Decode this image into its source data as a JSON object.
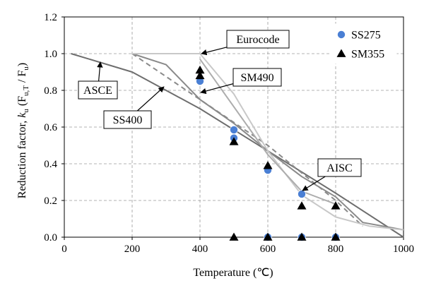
{
  "chart_data": {
    "type": "line",
    "xlabel": "Temperature (℃)",
    "ylabel_main": "Reduction factor, ",
    "ylabel_k": "k",
    "ylabel_k_sub": "u",
    "ylabel_ratio_open": " (F",
    "ylabel_ratio_sub1": "u,T",
    "ylabel_ratio_mid": " / F",
    "ylabel_ratio_sub2": "u",
    "ylabel_ratio_close": ")",
    "xlim": [
      0,
      1000
    ],
    "ylim": [
      0,
      1.2
    ],
    "xticks": [
      0,
      200,
      400,
      600,
      800,
      1000
    ],
    "yticks": [
      0.0,
      0.2,
      0.4,
      0.6,
      0.8,
      1.0,
      1.2
    ],
    "ytick_labels": [
      "0.0",
      "0.2",
      "0.4",
      "0.6",
      "0.8",
      "1.0",
      "1.2"
    ],
    "grid": true,
    "legend_position": "top-right",
    "curves": [
      {
        "label": "ASCE",
        "color": "#6e6e6e",
        "dash": "solid",
        "points": [
          [
            20,
            1.0
          ],
          [
            200,
            0.9
          ],
          [
            400,
            0.7
          ],
          [
            600,
            0.47
          ],
          [
            800,
            0.24
          ],
          [
            1000,
            0.0
          ]
        ]
      },
      {
        "label": "SS400",
        "color": "#8a8a8a",
        "dash": "solid",
        "points": [
          [
            200,
            1.0
          ],
          [
            300,
            0.94
          ],
          [
            400,
            0.75
          ],
          [
            500,
            0.62
          ],
          [
            600,
            0.47
          ],
          [
            700,
            0.33
          ],
          [
            800,
            0.22
          ],
          [
            880,
            0.08
          ],
          [
            1000,
            0.04
          ]
        ]
      },
      {
        "label": "SM490",
        "color": "#8a8a8a",
        "dash": "dashed",
        "points": [
          [
            200,
            1.0
          ],
          [
            400,
            0.75
          ],
          [
            600,
            0.5
          ],
          [
            800,
            0.2
          ],
          [
            880,
            0.06
          ]
        ]
      },
      {
        "label": "Eurocode",
        "color": "#c8c8c8",
        "dash": "solid",
        "points": [
          [
            200,
            1.0
          ],
          [
            400,
            1.0
          ],
          [
            500,
            0.78
          ],
          [
            600,
            0.47
          ],
          [
            700,
            0.23
          ],
          [
            800,
            0.11
          ],
          [
            900,
            0.06
          ],
          [
            1000,
            0.04
          ]
        ]
      },
      {
        "label": "AISC",
        "color": "#adadad",
        "dash": "solid",
        "points": [
          [
            400,
            0.97
          ],
          [
            600,
            0.45
          ],
          [
            700,
            0.25
          ],
          [
            800,
            0.18
          ]
        ]
      }
    ],
    "series": [
      {
        "name": "SS275",
        "marker": "circle",
        "color": "#4a7fd4",
        "points": [
          [
            400,
            0.85
          ],
          [
            500,
            0.585
          ],
          [
            500,
            0.54
          ],
          [
            600,
            0.365
          ],
          [
            700,
            0.235
          ],
          [
            600,
            0.0
          ],
          [
            700,
            0.0
          ],
          [
            800,
            0.0
          ]
        ]
      },
      {
        "name": "SM355",
        "marker": "triangle",
        "color": "#000000",
        "points": [
          [
            400,
            0.91
          ],
          [
            400,
            0.88
          ],
          [
            500,
            0.52
          ],
          [
            600,
            0.39
          ],
          [
            700,
            0.17
          ],
          [
            800,
            0.17
          ],
          [
            500,
            0.0
          ],
          [
            600,
            0.0
          ],
          [
            700,
            0.0
          ],
          [
            800,
            0.0
          ]
        ]
      }
    ],
    "callouts": [
      {
        "text": "Eurocode"
      },
      {
        "text": "SM490"
      },
      {
        "text": "ASCE"
      },
      {
        "text": "SS400"
      },
      {
        "text": "AISC"
      }
    ]
  }
}
